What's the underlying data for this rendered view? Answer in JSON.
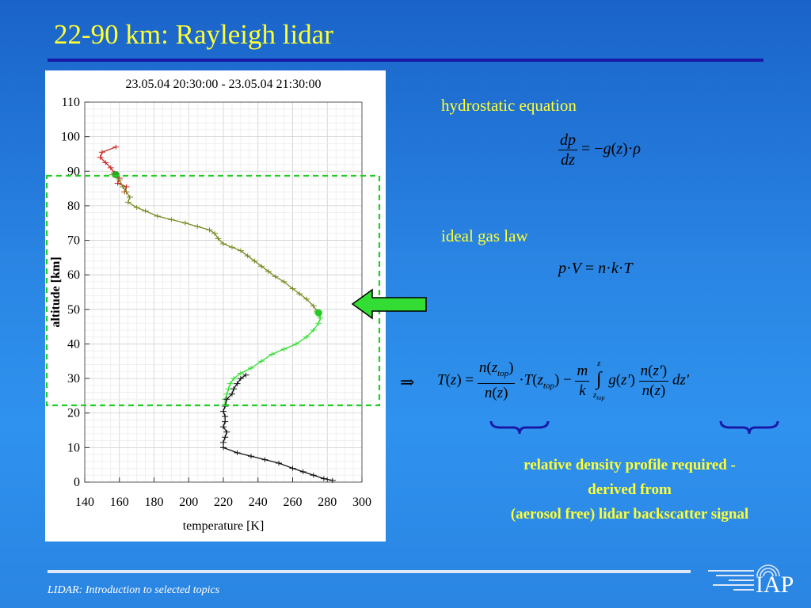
{
  "slide": {
    "title": "22-90 km: Rayleigh lidar",
    "footer": "LIDAR: Introduction to selected topics",
    "logo_text": "IAP"
  },
  "equations": {
    "hydrostatic_label": "hydrostatic equation",
    "ideal_gas_label": "ideal gas law",
    "note_lines": [
      "relative density profile required -",
      "derived from",
      "(aerosol free) lidar backscatter signal"
    ]
  },
  "colors": {
    "title": "#ffff33",
    "background": "#2a86e4",
    "rule": "#1a1aa8",
    "highlight_box": "#22cc22",
    "arrow": "#33dd33"
  },
  "chart_data": {
    "type": "line",
    "title": "23.05.04 20:30:00 - 23.05.04 21:30:00",
    "xlabel": "temperature [K]",
    "ylabel": "altitude [km]",
    "xlim": [
      140,
      300
    ],
    "ylim": [
      0,
      110
    ],
    "xticks": [
      140,
      160,
      180,
      200,
      220,
      240,
      260,
      280,
      300
    ],
    "yticks": [
      0,
      10,
      20,
      30,
      40,
      50,
      60,
      70,
      80,
      90,
      100,
      110
    ],
    "grid": true,
    "highlight_range_km": [
      22,
      89
    ],
    "marker_points": [
      {
        "x": 158,
        "y": 89,
        "color": "#22aa22"
      },
      {
        "x": 275,
        "y": 49,
        "color": "#22cc22"
      }
    ],
    "series": [
      {
        "color": "#cc2222",
        "points": [
          [
            158,
            97
          ],
          [
            150,
            95.5
          ],
          [
            149,
            94
          ],
          [
            152,
            92.5
          ],
          [
            155,
            91
          ],
          [
            157,
            89.5
          ],
          [
            160,
            88
          ],
          [
            159,
            86.5
          ],
          [
            164,
            85.5
          ],
          [
            163,
            84
          ]
        ]
      },
      {
        "color": "#7a8a22",
        "points": [
          [
            156,
            89
          ],
          [
            160,
            87.5
          ],
          [
            162,
            85.5
          ],
          [
            164,
            84
          ],
          [
            166,
            82.5
          ],
          [
            165,
            81
          ],
          [
            170,
            79.5
          ],
          [
            175,
            78.5
          ],
          [
            182,
            77
          ],
          [
            190,
            76
          ],
          [
            198,
            75
          ],
          [
            205,
            74
          ],
          [
            212,
            73
          ],
          [
            215,
            72
          ],
          [
            217,
            70.5
          ],
          [
            220,
            69
          ],
          [
            225,
            68
          ],
          [
            230,
            67
          ],
          [
            234,
            65.5
          ],
          [
            238,
            64
          ],
          [
            242,
            62.5
          ],
          [
            246,
            61
          ],
          [
            250,
            59.5
          ],
          [
            255,
            58
          ],
          [
            260,
            56
          ],
          [
            264,
            54.5
          ],
          [
            268,
            53
          ],
          [
            272,
            51
          ],
          [
            274,
            49.5
          ]
        ]
      },
      {
        "color": "#33dd33",
        "points": [
          [
            274,
            49
          ],
          [
            276,
            47.5
          ],
          [
            275,
            46
          ],
          [
            272,
            44
          ],
          [
            268,
            42
          ],
          [
            262,
            40
          ],
          [
            255,
            38.5
          ],
          [
            248,
            37
          ],
          [
            242,
            35
          ],
          [
            236,
            33
          ],
          [
            230,
            31.5
          ],
          [
            226,
            30
          ],
          [
            224,
            28.5
          ],
          [
            223,
            27
          ],
          [
            222,
            25.5
          ],
          [
            221,
            24
          ],
          [
            221,
            22.5
          ]
        ]
      },
      {
        "color": "#111111",
        "points": [
          [
            233,
            31
          ],
          [
            230,
            30
          ],
          [
            228,
            28.5
          ],
          [
            226,
            27
          ],
          [
            225,
            25.5
          ],
          [
            222,
            24
          ],
          [
            221,
            22
          ],
          [
            220,
            20.5
          ],
          [
            221,
            19
          ],
          [
            221,
            17.5
          ],
          [
            220,
            16
          ],
          [
            222,
            14.5
          ],
          [
            221,
            13
          ],
          [
            220,
            11.5
          ],
          [
            220,
            10
          ],
          [
            228,
            8.5
          ],
          [
            236,
            7.5
          ],
          [
            244,
            6.5
          ],
          [
            252,
            5.5
          ],
          [
            260,
            4
          ],
          [
            266,
            3
          ],
          [
            272,
            2
          ],
          [
            278,
            1
          ],
          [
            283,
            0.5
          ]
        ]
      }
    ]
  }
}
